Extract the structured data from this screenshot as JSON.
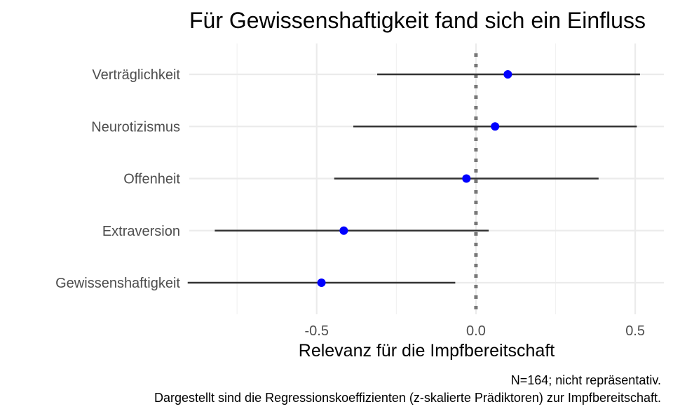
{
  "colors": {
    "point": "#0000ff",
    "interval": "#333333",
    "reference_line": "#777777",
    "grid_major": "#ebebeb",
    "grid_minor": "#f2f2f2"
  },
  "caption_lines": [
    "N=164; nicht repräsentativ.",
    "Dargestellt sind die Regressionskoeffizienten (z-skalierte Prädiktoren) zur Impfbereitschaft."
  ],
  "chart_data": {
    "type": "scatter",
    "subtype": "coefficient-plot",
    "title": "Für Gewissenshaftigkeit fand sich ein Einfluss",
    "xlabel": "Relevanz für die Impfbereitschaft",
    "ylabel": "",
    "xlim": [
      -0.9,
      0.59
    ],
    "x_ticks": [
      -0.5,
      0.0,
      0.5
    ],
    "x_tick_labels": [
      "-0.5",
      "0.0",
      "0.5"
    ],
    "reference_line_x": 0,
    "grid": true,
    "legend": "none",
    "categories": [
      "Verträglichkeit",
      "Neurotizismus",
      "Offenheit",
      "Extraversion",
      "Gewissenshaftigkeit"
    ],
    "series": [
      {
        "values": [
          0.1,
          0.06,
          -0.03,
          -0.415,
          -0.485
        ],
        "lower": [
          -0.31,
          -0.385,
          -0.445,
          -0.82,
          -0.905
        ],
        "upper": [
          0.515,
          0.505,
          0.385,
          0.04,
          -0.065
        ]
      }
    ]
  }
}
